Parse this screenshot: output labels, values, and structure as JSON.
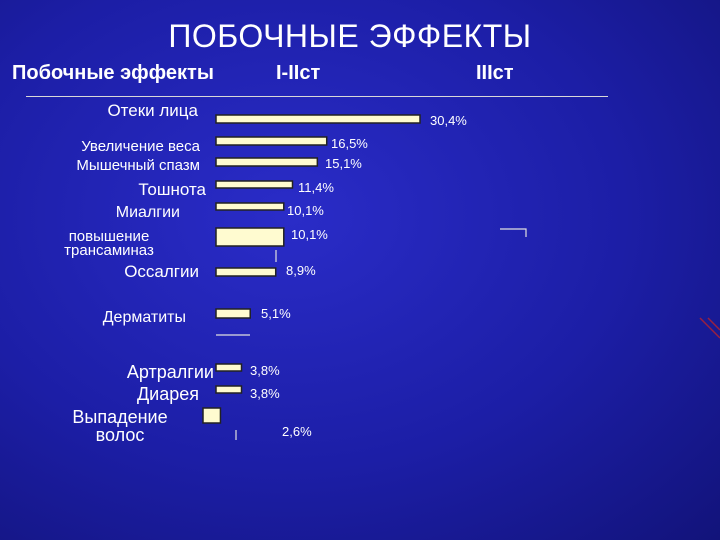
{
  "slide": {
    "title": "ПОБОЧНЫЕ ЭФФЕКТЫ",
    "header_effects": "Побочные эффекты",
    "header_grade12": "I-IIст",
    "header_grade3": "IIIст"
  },
  "colors": {
    "bar_fill": "#fffbd0",
    "bar_stroke": "#222222",
    "label_text": "#ffffff",
    "accent_line": "#9a2040"
  },
  "chart_data": {
    "type": "bar",
    "orientation": "horizontal",
    "title": "",
    "xlabel": "",
    "ylabel": "",
    "categories": [
      "Отеки лица",
      "Увеличение веса",
      "Мышечный спазм",
      "Тошнота",
      "Миалгии",
      "повышение трансаминаз",
      "Оссалгии",
      "Дерматиты",
      "Артралгии",
      "Диарея",
      "Выпадение волос"
    ],
    "values": [
      30.4,
      16.5,
      15.1,
      11.4,
      10.1,
      10.1,
      8.9,
      5.1,
      3.8,
      3.8,
      2.6
    ],
    "value_labels": [
      "30,4%",
      "16,5%",
      "15,1%",
      "11,4%",
      "10,1%",
      "10,1%",
      "8,9%",
      "5,1%",
      "3,8%",
      "3,8%",
      "2,6%"
    ],
    "xlim": [
      0,
      30.4
    ],
    "grid": false,
    "legend": "none"
  }
}
